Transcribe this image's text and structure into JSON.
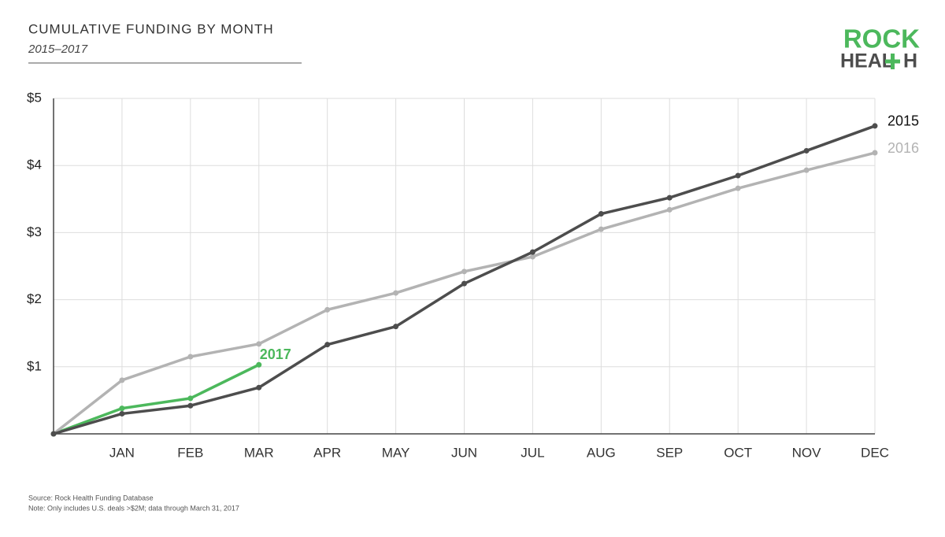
{
  "chart_data": {
    "type": "line",
    "title": "CUMULATIVE FUNDING BY MONTH",
    "subtitle": "2015–2017",
    "logo": [
      "ROCK",
      "HEAL",
      "H"
    ],
    "categories": [
      null,
      "JAN",
      "FEB",
      "MAR",
      "APR",
      "MAY",
      "JUN",
      "JUL",
      "AUG",
      "SEP",
      "OCT",
      "NOV",
      "DEC"
    ],
    "series": [
      {
        "name": "2015",
        "color": "#4d4d4d",
        "values": [
          0,
          0.3,
          0.42,
          0.69,
          1.33,
          1.6,
          2.24,
          2.71,
          3.28,
          3.52,
          3.85,
          4.22,
          4.59
        ]
      },
      {
        "name": "2016",
        "color": "#b3b3b3",
        "values": [
          0,
          0.8,
          1.15,
          1.34,
          1.85,
          2.1,
          2.42,
          2.64,
          3.05,
          3.34,
          3.66,
          3.93,
          4.19
        ]
      },
      {
        "name": "2017",
        "color": "#4cb85c",
        "values": [
          0,
          0.38,
          0.53,
          1.03,
          null,
          null,
          null,
          null,
          null,
          null,
          null,
          null,
          null
        ]
      }
    ],
    "ylim": [
      0,
      5
    ],
    "yticks": [
      {
        "value": 1,
        "label": "$1"
      },
      {
        "value": 2,
        "label": "$2"
      },
      {
        "value": 3,
        "label": "$3"
      },
      {
        "value": 4,
        "label": "$4"
      },
      {
        "value": 5,
        "label": "$5"
      }
    ],
    "grid": true,
    "notes": [
      "Source: Rock Health Funding Database",
      "Note: Only includes U.S. deals >$2M; data through March 31, 2017"
    ]
  }
}
